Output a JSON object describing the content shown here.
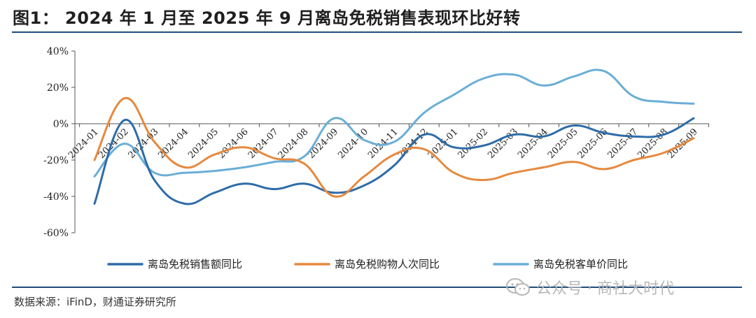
{
  "title": "图1： 2024 年 1 月至 2025 年 9 月离岛免税销售表现环比好转",
  "source": "数据来源：iFinD，财通证券研究所",
  "watermark": {
    "icon": "wechat-icon",
    "text": "公众号 · 商社大时代"
  },
  "colors": {
    "sales": "#2e6ca8",
    "shoppers": "#e6893e",
    "unit_price": "#6aaed6",
    "rule": "#1f4e79"
  },
  "chart_data": {
    "type": "line",
    "title": "",
    "xlabel": "",
    "ylabel": "",
    "ylim": [
      -60,
      40
    ],
    "yticks": [
      "40%",
      "20%",
      "0%",
      "-20%",
      "-40%",
      "-60%"
    ],
    "ytick_values": [
      40,
      20,
      0,
      -20,
      -40,
      -60
    ],
    "categories": [
      "2024-01",
      "2024-02",
      "2024-03",
      "2024-04",
      "2024-05",
      "2024-06",
      "2024-07",
      "2024-08",
      "2024-09",
      "2024-10",
      "2024-11",
      "2024-12",
      "2025-01",
      "2025-02",
      "2025-03",
      "2025-04",
      "2025-05",
      "2025-06",
      "2025-07",
      "2025-08",
      "2025-09"
    ],
    "grid": false,
    "legend_position": "bottom",
    "series": [
      {
        "name": "离岛免税销售额同比",
        "color_key": "sales",
        "values": [
          -44,
          2,
          -31,
          -44,
          -38,
          -33,
          -36,
          -33,
          -38,
          -34,
          -23,
          -6,
          -13,
          -12,
          -6,
          -7,
          -1,
          -5,
          -7,
          -6,
          3
        ]
      },
      {
        "name": "离岛免税购物人次同比",
        "color_key": "shoppers",
        "values": [
          -20,
          14,
          -10,
          -24,
          -17,
          -13,
          -19,
          -22,
          -40,
          -29,
          -17,
          -14,
          -27,
          -31,
          -27,
          -24,
          -21,
          -25,
          -20,
          -16,
          -8
        ]
      },
      {
        "name": "离岛免税客单价同比",
        "color_key": "unit_price",
        "values": [
          -29,
          -11,
          -27,
          -27,
          -26,
          -24,
          -21,
          -18,
          3,
          -9,
          -10,
          6,
          16,
          25,
          27,
          21,
          26,
          29,
          15,
          12,
          11
        ]
      }
    ]
  }
}
